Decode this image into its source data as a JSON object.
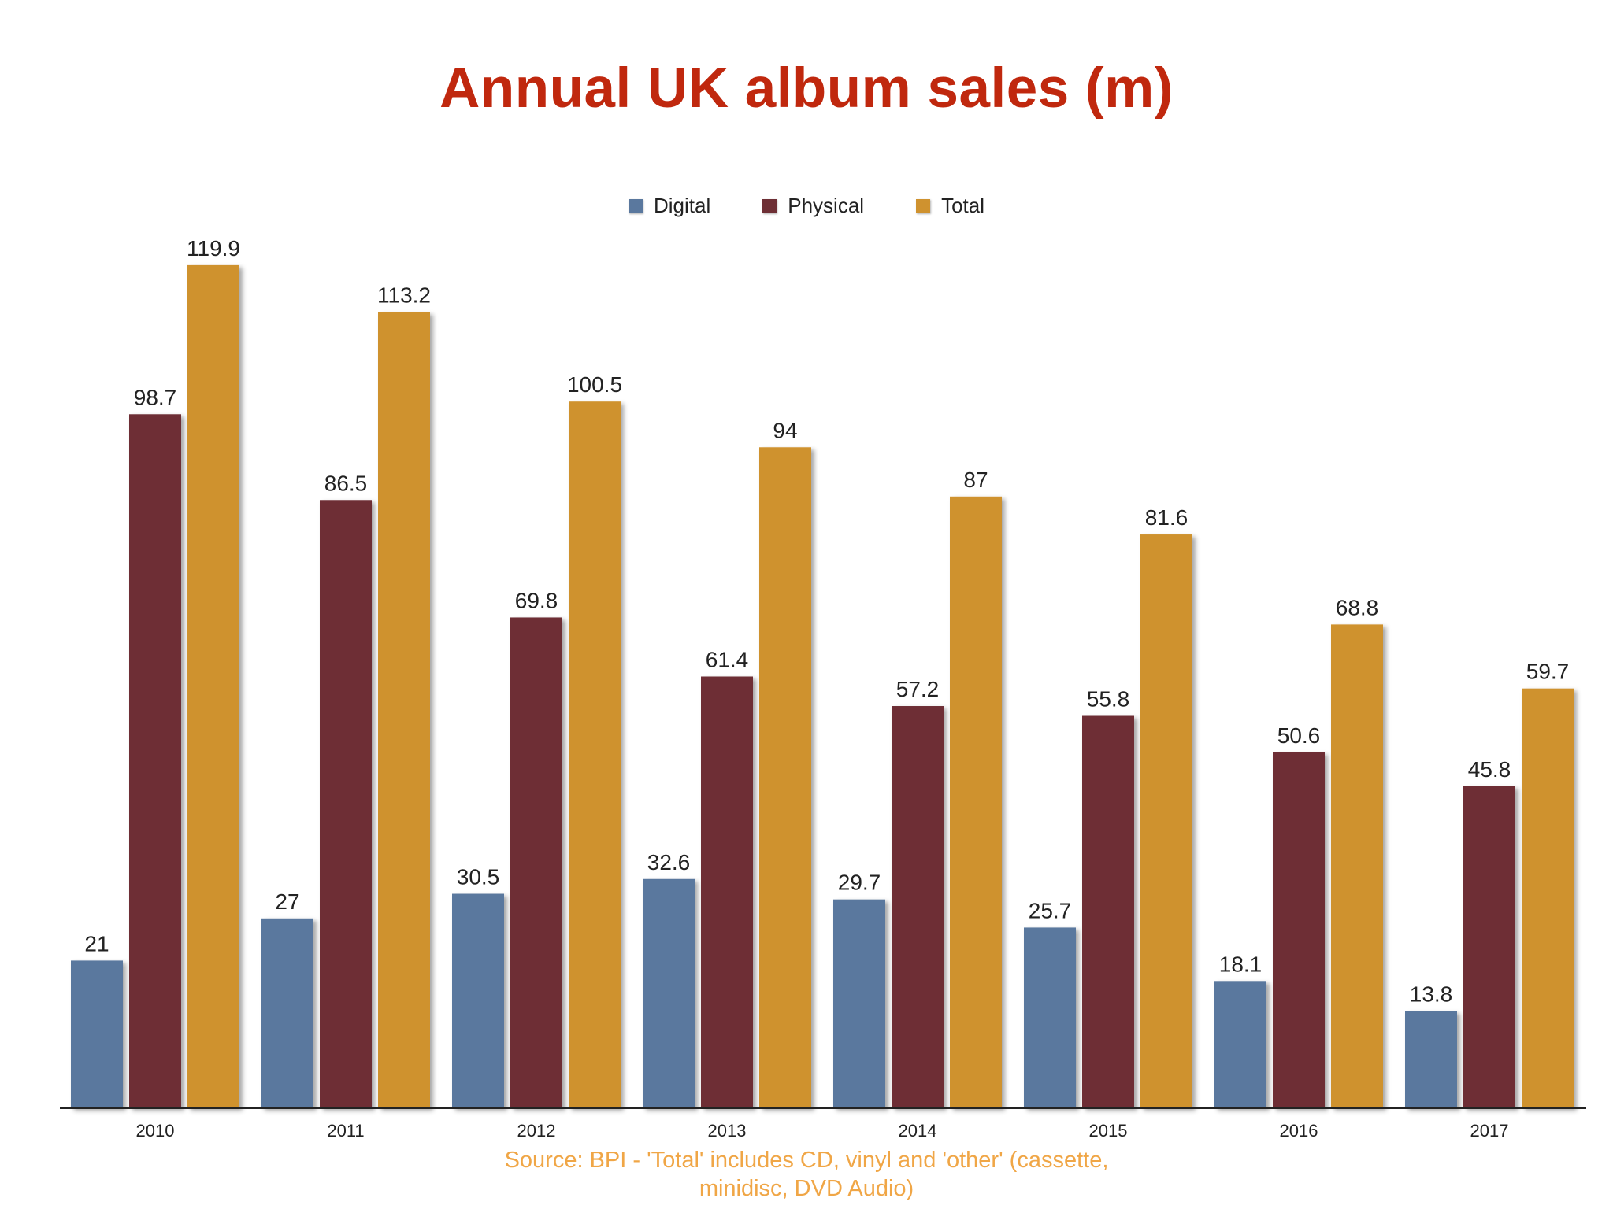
{
  "title": "Annual UK album sales (m)",
  "colors": {
    "title": "#c0280e",
    "digital": "#5a789e",
    "physical": "#6e2f35",
    "total": "#cf922f",
    "source": "#f0a646"
  },
  "source_note": {
    "line1": "Source: BPI - 'Total' includes CD, vinyl and 'other' (cassette,",
    "line2": "minidisc, DVD Audio)"
  },
  "chart_data": {
    "type": "bar",
    "title": "Annual UK album sales (m)",
    "categories": [
      "2010",
      "2011",
      "2012",
      "2013",
      "2014",
      "2015",
      "2016",
      "2017"
    ],
    "series": [
      {
        "name": "Digital",
        "color": "#5a789e",
        "values": [
          21,
          27,
          30.5,
          32.6,
          29.7,
          25.7,
          18.1,
          13.8
        ]
      },
      {
        "name": "Physical",
        "color": "#6e2f35",
        "values": [
          98.7,
          86.5,
          69.8,
          61.4,
          57.2,
          55.8,
          50.6,
          45.8
        ]
      },
      {
        "name": "Total",
        "color": "#cf922f",
        "values": [
          119.9,
          113.2,
          100.5,
          94,
          87,
          81.6,
          68.8,
          59.7
        ]
      }
    ],
    "xlabel": "",
    "ylabel": "",
    "ylim": [
      0,
      120
    ],
    "grid": false,
    "legend_position": "top-center",
    "data_labels": true
  }
}
